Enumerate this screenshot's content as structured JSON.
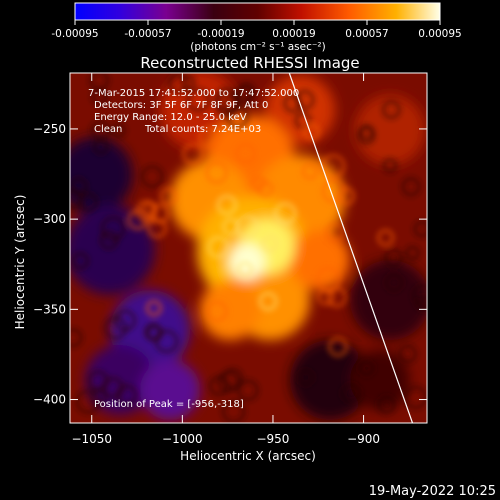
{
  "colorbar": {
    "ticks": [
      "-0.00095",
      "-0.00057",
      "-0.00019",
      "0.00019",
      "0.00057",
      "0.00095"
    ],
    "unit_label": "(photons cm⁻² s⁻¹ asec⁻²)",
    "colors": [
      "#0000ff",
      "#4d00c8",
      "#7a0080",
      "#3a0010",
      "#700000",
      "#c01000",
      "#ff5000",
      "#ff9a00",
      "#ffd000",
      "#ffffe0"
    ]
  },
  "chart_data": {
    "type": "heatmap",
    "title": "Reconstructed RHESSI Image",
    "xlabel": "Heliocentric X (arcsec)",
    "ylabel": "Heliocentric Y (arcsec)",
    "xlim": [
      -1062,
      -865
    ],
    "ylim": [
      -413,
      -219
    ],
    "xticks": [
      -1050,
      -1000,
      -950,
      -900
    ],
    "yticks": [
      -250,
      -300,
      -350,
      -400
    ],
    "peak": {
      "x": -956,
      "y": -318
    },
    "limb_line": {
      "x": [
        -941,
        -873
      ],
      "y": [
        -219,
        -413
      ]
    },
    "annotations": [
      "7-Mar-2015 17:41:52.000 to 17:47:52.000",
      "Detectors: 3F 5F 6F 7F 8F 9F, Att 0",
      "Energy Range: 12.0 - 25.0 keV",
      "Clean",
      "Total counts: 7.24E+03",
      "Position of Peak = [-956,-318]"
    ]
  },
  "footer": {
    "date": "19-May-2022 10:25"
  }
}
